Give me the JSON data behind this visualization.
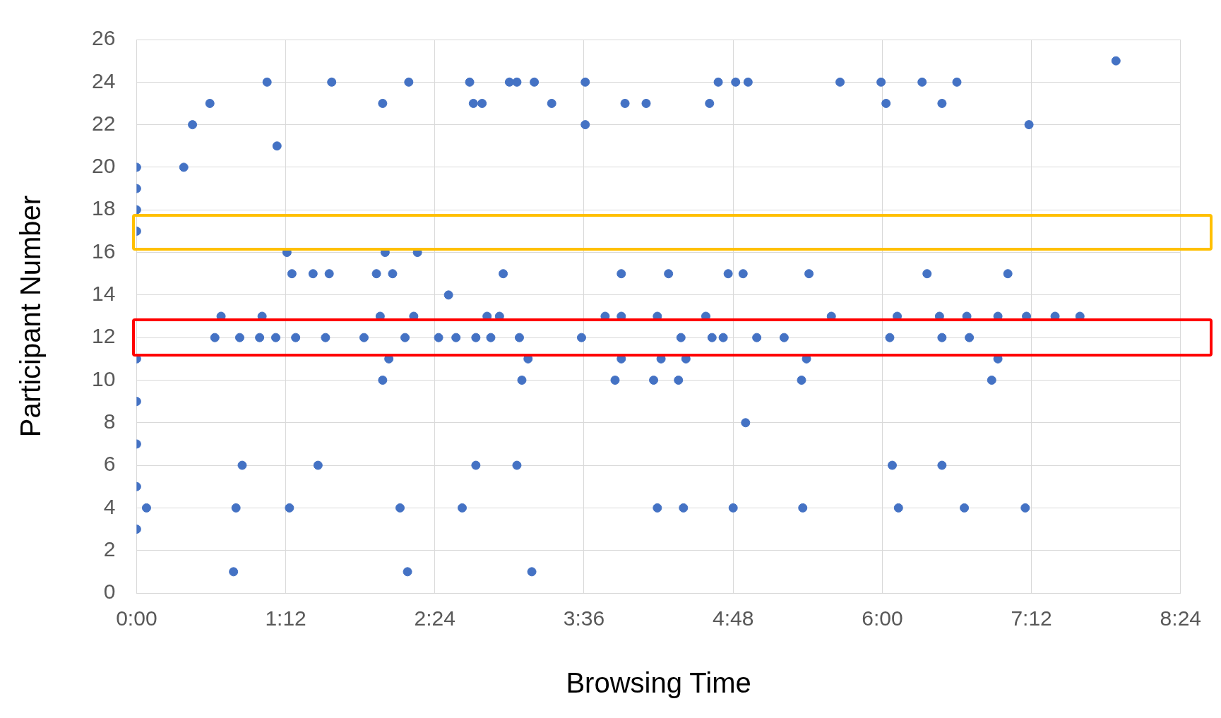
{
  "chart_data": {
    "type": "scatter",
    "xlabel": "Browsing Time",
    "ylabel": "Participant Number",
    "x": [
      0,
      0,
      0,
      0,
      0,
      0,
      0,
      0,
      0,
      0.08,
      0.38,
      0.45,
      0.59,
      0.63,
      0.68,
      0.78,
      0.8,
      0.83,
      0.85,
      0.99,
      1.01,
      1.05,
      1.12,
      1.13,
      1.21,
      1.23,
      1.25,
      1.28,
      1.42,
      1.46,
      1.52,
      1.55,
      1.57,
      1.83,
      1.93,
      1.96,
      1.98,
      1.98,
      2.0,
      2.03,
      2.06,
      2.12,
      2.16,
      2.18,
      2.19,
      2.23,
      2.26,
      2.43,
      2.51,
      2.57,
      2.62,
      2.68,
      2.71,
      2.73,
      2.73,
      2.78,
      2.82,
      2.85,
      2.92,
      2.95,
      3.0,
      3.06,
      3.06,
      3.08,
      3.1,
      3.15,
      3.18,
      3.2,
      3.34,
      3.58,
      3.61,
      3.61,
      3.77,
      3.85,
      3.9,
      3.9,
      3.9,
      3.93,
      4.1,
      4.16,
      4.19,
      4.19,
      4.22,
      4.28,
      4.36,
      4.38,
      4.4,
      4.42,
      4.58,
      4.61,
      4.63,
      4.68,
      4.72,
      4.76,
      4.8,
      4.82,
      4.88,
      4.9,
      4.92,
      4.99,
      5.21,
      5.35,
      5.36,
      5.39,
      5.41,
      5.59,
      5.66,
      5.99,
      6.03,
      6.06,
      6.08,
      6.12,
      6.13,
      6.32,
      6.36,
      6.46,
      6.48,
      6.48,
      6.48,
      6.6,
      6.66,
      6.68,
      6.7,
      6.88,
      6.93,
      6.93,
      7.01,
      7.15,
      7.16,
      7.18,
      7.39,
      7.59,
      7.88
    ],
    "values": [
      20,
      19,
      18,
      17,
      11,
      9,
      7,
      5,
      3,
      4,
      20,
      22,
      23,
      12,
      13,
      1,
      4,
      12,
      6,
      12,
      13,
      24,
      12,
      21,
      16,
      4,
      15,
      12,
      15,
      6,
      12,
      15,
      24,
      12,
      15,
      13,
      23,
      10,
      16,
      11,
      15,
      4,
      12,
      1,
      24,
      13,
      16,
      12,
      14,
      12,
      4,
      24,
      23,
      12,
      6,
      23,
      13,
      12,
      13,
      15,
      24,
      24,
      6,
      12,
      10,
      11,
      1,
      24,
      23,
      12,
      24,
      22,
      13,
      10,
      15,
      13,
      11,
      23,
      23,
      10,
      13,
      4,
      11,
      15,
      10,
      12,
      4,
      11,
      13,
      23,
      12,
      24,
      12,
      15,
      4,
      24,
      15,
      8,
      24,
      12,
      12,
      10,
      4,
      11,
      15,
      13,
      24,
      24,
      23,
      12,
      6,
      13,
      4,
      24,
      15,
      13,
      23,
      12,
      6,
      24,
      4,
      13,
      12,
      10,
      13,
      11,
      15,
      4,
      13,
      22,
      13,
      13,
      25
    ],
    "color": "#4472c4",
    "marker": "circle",
    "xlim": [
      0,
      8.4
    ],
    "xticks": [
      {
        "value": 0,
        "label": "0:00"
      },
      {
        "value": 1.2,
        "label": "1:12"
      },
      {
        "value": 2.4,
        "label": "2:24"
      },
      {
        "value": 3.6,
        "label": "3:36"
      },
      {
        "value": 4.8,
        "label": "4:48"
      },
      {
        "value": 6,
        "label": "6:00"
      },
      {
        "value": 7.2,
        "label": "7:12"
      },
      {
        "value": 8.4,
        "label": "8:24"
      }
    ],
    "ylim": [
      0,
      26
    ],
    "yticks": [
      0,
      2,
      4,
      6,
      8,
      10,
      12,
      14,
      16,
      18,
      20,
      22,
      24,
      26
    ],
    "grid": true
  }
}
